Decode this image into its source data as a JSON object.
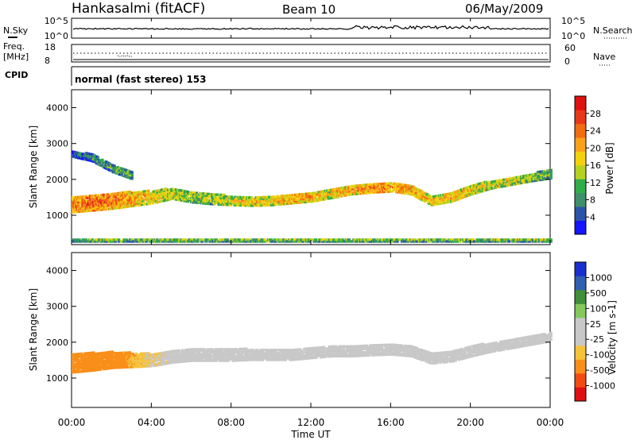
{
  "header": {
    "station": "Hankasalmi (fitACF)",
    "beam": "Beam 10",
    "date": "06/May/2009"
  },
  "top_panels": {
    "nsky_label": "N.Sky",
    "nsky_ticks": [
      "10^5",
      "10^0"
    ],
    "nsearch_label": "N.Search",
    "nsearch_ticks": [
      "10^5",
      "10^0"
    ],
    "freq_label_line1": "Freq.",
    "freq_label_line2": "[MHz]",
    "freq_ticks": [
      "18",
      "8"
    ],
    "nave_label": "Nave",
    "nave_ticks": [
      "60",
      "0"
    ],
    "cpid_label": "CPID",
    "cpid_text": "normal (fast stereo) 153"
  },
  "x_axis": {
    "label": "Time UT",
    "ticks": [
      "00:00",
      "04:00",
      "08:00",
      "12:00",
      "16:00",
      "20:00",
      "00:00"
    ]
  },
  "colors": {
    "power_scale": [
      "#1414ff",
      "#2a54a8",
      "#3f8f6a",
      "#2fae4a",
      "#b6d21e",
      "#f5d10c",
      "#f9a11a",
      "#f26c12",
      "#e8381a",
      "#e01010"
    ],
    "velocity_scale": [
      "#e01010",
      "#f24c12",
      "#f98f1a",
      "#f5c23a",
      "#c8c8c8",
      "#c8c8c8",
      "#84c95a",
      "#3f8f3a",
      "#2f5fb0",
      "#1a2fd0"
    ]
  },
  "chart_data": [
    {
      "type": "heatmap",
      "title": "",
      "xlabel": "",
      "ylabel": "Slant Range [km]",
      "xlim": [
        0,
        24
      ],
      "ylim": [
        180,
        4500
      ],
      "yticks": [
        1000,
        2000,
        3000,
        4000
      ],
      "colorbar": {
        "label": "Power [dB]",
        "ticks": [
          "4",
          "8",
          "12",
          "16",
          "20",
          "24",
          "28"
        ],
        "range": [
          0,
          30
        ]
      },
      "echo_bands": [
        {
          "name": "main",
          "x": [
            0,
            1,
            2,
            3,
            4,
            5,
            6,
            7,
            8,
            9,
            10,
            11,
            12,
            13,
            14,
            15,
            16,
            17,
            18,
            19,
            20,
            21,
            22,
            23,
            24
          ],
          "center_km": [
            1300,
            1350,
            1400,
            1450,
            1500,
            1600,
            1500,
            1450,
            1400,
            1380,
            1400,
            1450,
            1500,
            1600,
            1700,
            1750,
            1780,
            1700,
            1400,
            1500,
            1700,
            1850,
            1950,
            2050,
            2150
          ],
          "width_km": [
            450,
            450,
            450,
            400,
            350,
            300,
            300,
            300,
            250,
            250,
            250,
            250,
            250,
            250,
            250,
            250,
            250,
            250,
            250,
            250,
            250,
            220,
            220,
            220,
            250
          ],
          "power_db": [
            22,
            24,
            22,
            20,
            18,
            16,
            14,
            14,
            16,
            18,
            18,
            20,
            20,
            18,
            20,
            22,
            22,
            20,
            18,
            20,
            18,
            16,
            16,
            14,
            12
          ]
        },
        {
          "name": "upper",
          "x": [
            0,
            1,
            2,
            3
          ],
          "center_km": [
            2700,
            2600,
            2300,
            2100
          ],
          "width_km": [
            150,
            200,
            200,
            200
          ],
          "power_db": [
            6,
            8,
            10,
            12
          ]
        },
        {
          "name": "near",
          "x": [
            0,
            6,
            12,
            18,
            24
          ],
          "center_km": [
            300,
            300,
            300,
            300,
            300
          ],
          "width_km": [
            80,
            80,
            80,
            80,
            80
          ],
          "power_db": [
            12,
            12,
            12,
            12,
            12
          ]
        }
      ]
    },
    {
      "type": "heatmap",
      "title": "",
      "xlabel": "Time UT",
      "ylabel": "Slant Range [km]",
      "xlim": [
        0,
        24
      ],
      "ylim": [
        180,
        4500
      ],
      "yticks": [
        1000,
        2000,
        3000,
        4000
      ],
      "colorbar": {
        "label": "Velocity [m s-1]",
        "ticks": [
          "1000",
          "500",
          "100",
          "25",
          "-25",
          "-100",
          "-500",
          "-1000"
        ]
      },
      "echo_bands": [
        {
          "name": "main",
          "x": [
            0,
            1,
            2,
            3,
            4,
            5,
            6,
            7,
            8,
            9,
            10,
            11,
            12,
            13,
            14,
            15,
            16,
            17,
            18,
            19,
            20,
            21,
            22,
            23,
            24
          ],
          "center_km": [
            1400,
            1450,
            1500,
            1500,
            1500,
            1600,
            1650,
            1650,
            1650,
            1650,
            1650,
            1650,
            1700,
            1750,
            1750,
            1780,
            1800,
            1750,
            1550,
            1600,
            1750,
            1850,
            1950,
            2050,
            2150
          ],
          "width_km": [
            500,
            500,
            450,
            400,
            350,
            350,
            350,
            350,
            350,
            300,
            300,
            300,
            300,
            300,
            300,
            300,
            300,
            300,
            300,
            300,
            300,
            250,
            250,
            250,
            250
          ],
          "velocity": [
            -300,
            -300,
            -250,
            -150,
            -50,
            0,
            0,
            0,
            0,
            0,
            0,
            0,
            0,
            0,
            0,
            0,
            0,
            0,
            0,
            0,
            0,
            0,
            0,
            0,
            0
          ]
        }
      ]
    }
  ]
}
